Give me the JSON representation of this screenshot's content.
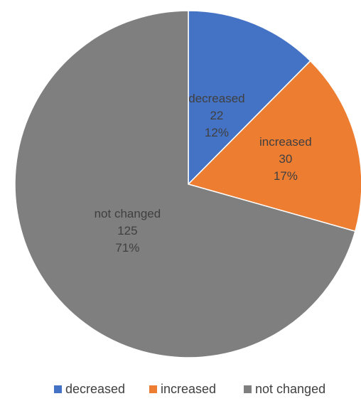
{
  "chart_data": {
    "type": "pie",
    "title": "",
    "categories": [
      "decreased",
      "increased",
      "not changed"
    ],
    "values": [
      22,
      30,
      125
    ],
    "percentages": [
      "12%",
      "17%",
      "71%"
    ],
    "colors": [
      "#4472C4",
      "#ED7D31",
      "#7F7F7F"
    ],
    "start_angle_deg": 0,
    "direction": "clockwise",
    "data_labels": "category, value, percent",
    "legend": {
      "position": "bottom",
      "entries": [
        "decreased",
        "increased",
        "not changed"
      ]
    }
  }
}
